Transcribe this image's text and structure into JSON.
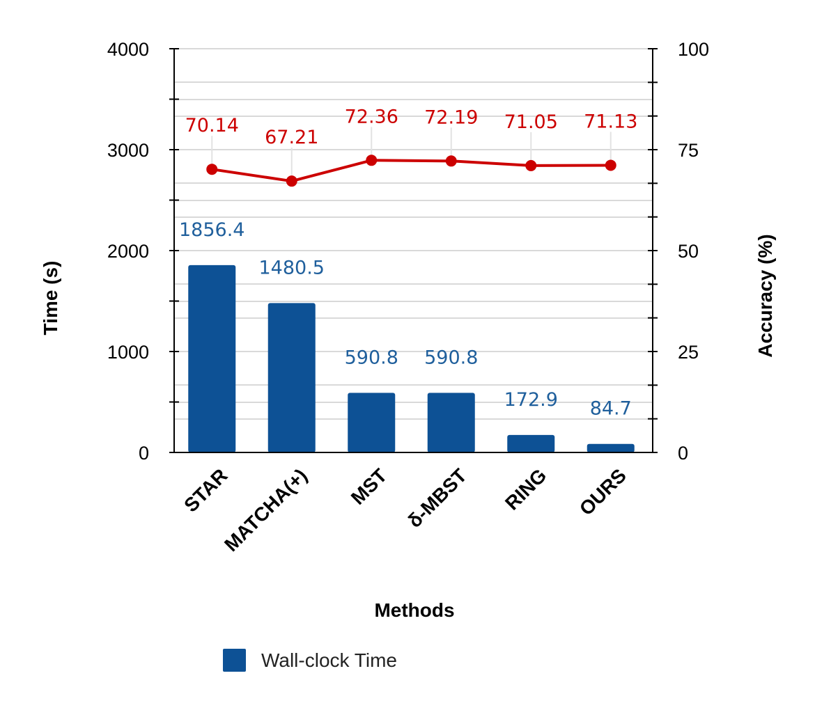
{
  "chart_data": {
    "type": "bar",
    "categories": [
      "STAR",
      "MATCHA(+)",
      "MST",
      "δ-MBST",
      "RING",
      "OURS"
    ],
    "series": [
      {
        "name": "Wall-clock Time",
        "type": "bar",
        "axis": "left",
        "values": [
          1856.4,
          1480.5,
          590.8,
          590.8,
          172.9,
          84.7
        ],
        "color": "#0d5195",
        "label_color": "#1f5f9c"
      },
      {
        "type": "line",
        "axis": "right",
        "values": [
          70.14,
          67.21,
          72.36,
          72.19,
          71.05,
          71.13
        ],
        "color": "#cc0000"
      }
    ],
    "xlabel": "Methods",
    "ylabel": "Time (s)",
    "y2label": "Accuracy (%)",
    "ylim": [
      0,
      4000
    ],
    "y2lim": [
      0,
      100
    ],
    "yticks": [
      "0",
      "1000",
      "2000",
      "3000",
      "4000"
    ],
    "y2ticks": [
      "0",
      "25",
      "50",
      "75",
      "100"
    ],
    "grid": true,
    "legend_position": "bottom"
  }
}
